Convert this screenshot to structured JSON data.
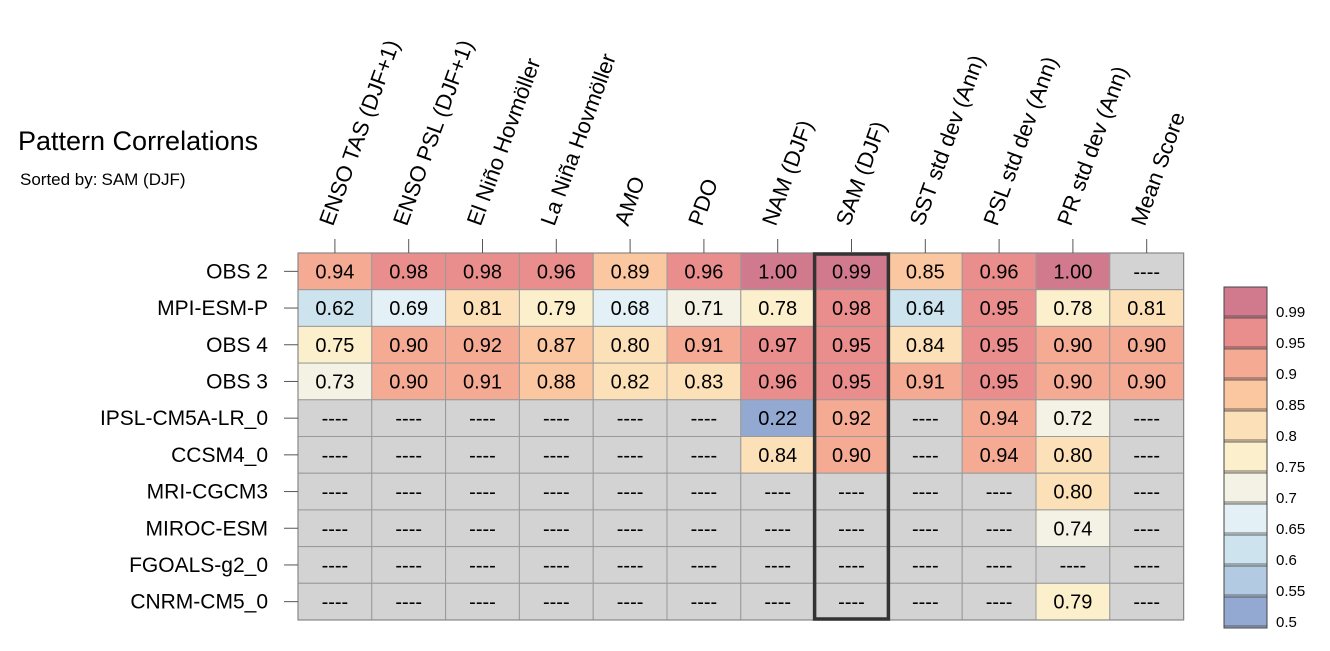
{
  "title": "Pattern Correlations",
  "subtitle_label": "Sorted by:",
  "subtitle_value": "SAM (DJF)",
  "chart_data": {
    "type": "heatmap",
    "title": "Pattern Correlations",
    "sorted_by": "SAM (DJF)",
    "highlight_column": "SAM (DJF)",
    "columns": [
      "ENSO TAS (DJF+1)",
      "ENSO PSL (DJF+1)",
      "El Niño Hovmöller",
      "La Niña Hovmöller",
      "AMO",
      "PDO",
      "NAM (DJF)",
      "SAM (DJF)",
      "SST std dev (Ann)",
      "PSL std dev (Ann)",
      "PR std dev (Ann)",
      "Mean Score"
    ],
    "rows": [
      "OBS 2",
      "MPI-ESM-P",
      "OBS 4",
      "OBS 3",
      "IPSL-CM5A-LR_0",
      "CCSM4_0",
      "MRI-CGCM3",
      "MIROC-ESM",
      "FGOALS-g2_0",
      "CNRM-CM5_0"
    ],
    "values": [
      [
        0.94,
        0.98,
        0.98,
        0.96,
        0.89,
        0.96,
        1.0,
        0.99,
        0.85,
        0.96,
        1.0,
        null
      ],
      [
        0.62,
        0.69,
        0.81,
        0.79,
        0.68,
        0.71,
        0.78,
        0.98,
        0.64,
        0.95,
        0.78,
        0.81
      ],
      [
        0.75,
        0.9,
        0.92,
        0.87,
        0.8,
        0.91,
        0.97,
        0.95,
        0.84,
        0.95,
        0.9,
        0.9
      ],
      [
        0.73,
        0.9,
        0.91,
        0.88,
        0.82,
        0.83,
        0.96,
        0.95,
        0.91,
        0.95,
        0.9,
        0.9
      ],
      [
        null,
        null,
        null,
        null,
        null,
        null,
        0.22,
        0.92,
        null,
        0.94,
        0.72,
        null
      ],
      [
        null,
        null,
        null,
        null,
        null,
        null,
        0.84,
        0.9,
        null,
        0.94,
        0.8,
        null
      ],
      [
        null,
        null,
        null,
        null,
        null,
        null,
        null,
        null,
        null,
        null,
        0.8,
        null
      ],
      [
        null,
        null,
        null,
        null,
        null,
        null,
        null,
        null,
        null,
        null,
        0.74,
        null
      ],
      [
        null,
        null,
        null,
        null,
        null,
        null,
        null,
        null,
        null,
        null,
        null,
        null
      ],
      [
        null,
        null,
        null,
        null,
        null,
        null,
        null,
        null,
        null,
        null,
        0.79,
        null
      ]
    ],
    "missing_text": "----",
    "colorbar": {
      "labels": [
        "0.99",
        "0.95",
        "0.9",
        "0.85",
        "0.8",
        "0.75",
        "0.7",
        "0.65",
        "0.6",
        "0.55",
        "0.5"
      ],
      "colors": [
        "#d27a8d",
        "#e98e8c",
        "#f5ab93",
        "#fbc7a0",
        "#fce0b8",
        "#fcefcb",
        "#f3f2e4",
        "#e3f0f5",
        "#cde3ee",
        "#b3cbe2",
        "#93a9d2"
      ]
    },
    "missing_color": "#d3d3d3"
  }
}
